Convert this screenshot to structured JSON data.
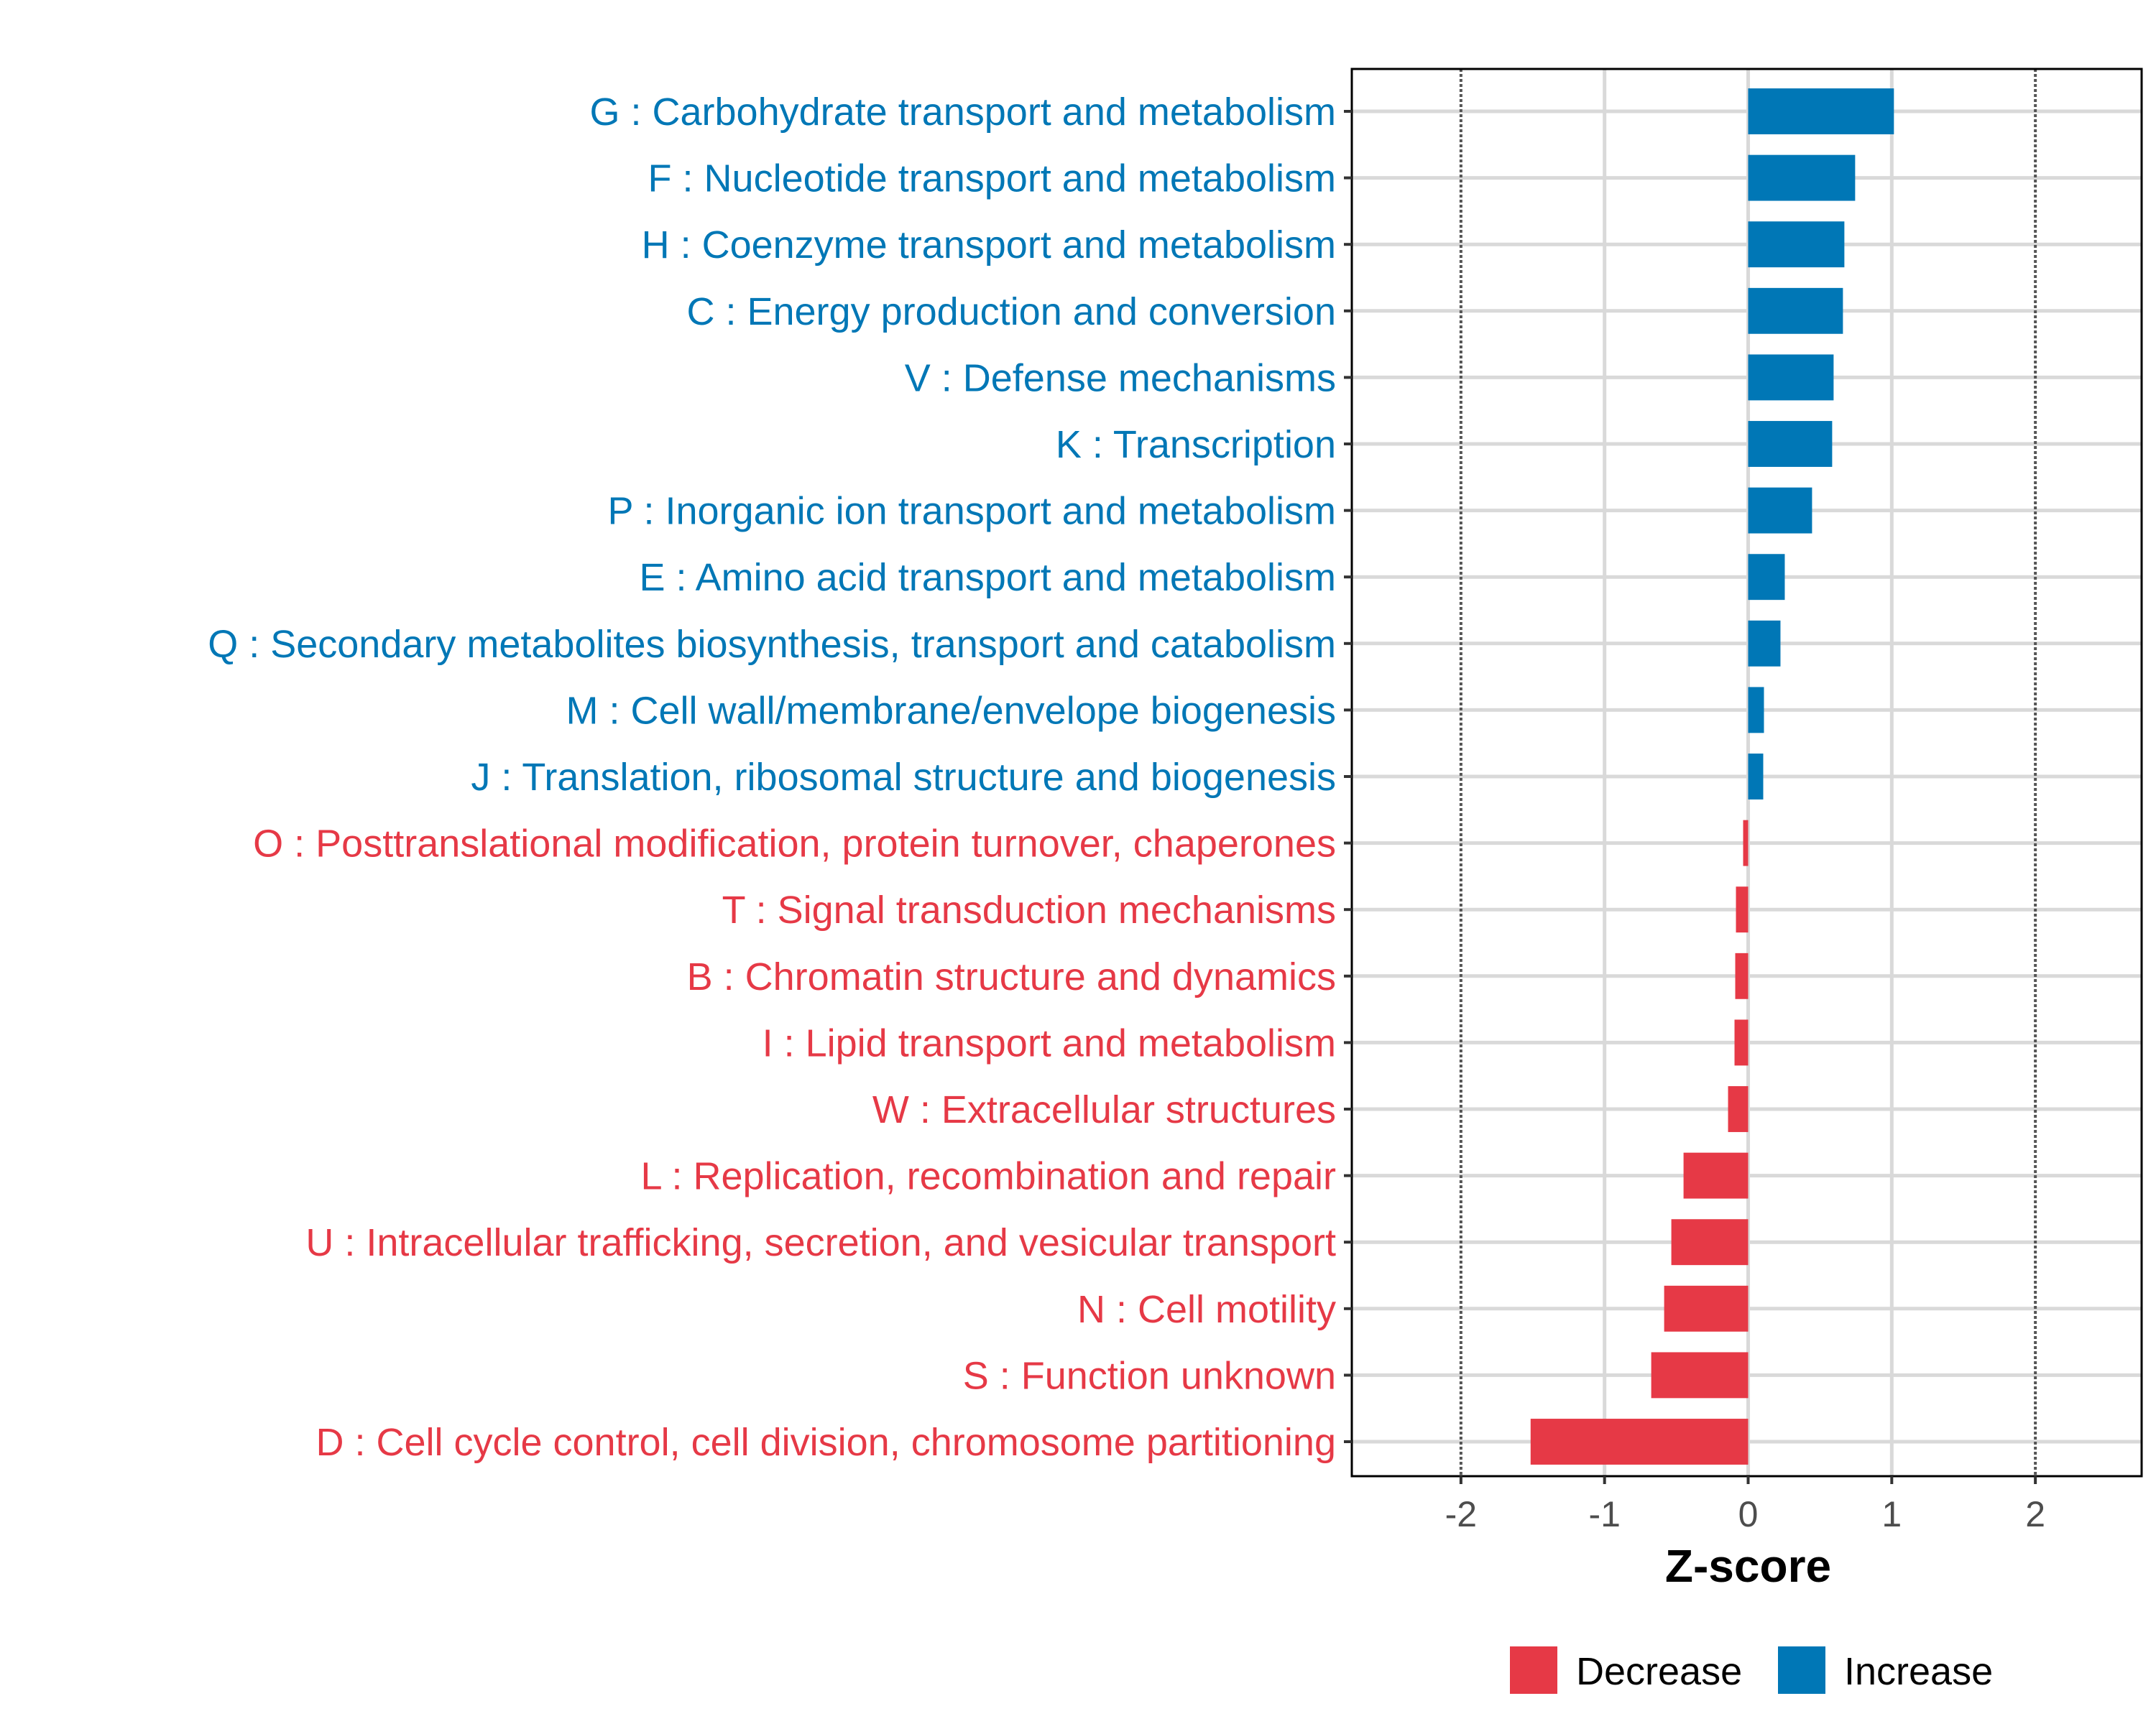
{
  "chart_data": {
    "type": "bar",
    "orientation": "horizontal",
    "title": "",
    "xlabel": "Z-score",
    "ylabel": "",
    "xlim": [
      -2.76,
      2.74
    ],
    "xticks": [
      -2,
      -1,
      0,
      1,
      2
    ],
    "xtick_labels": [
      "-2",
      "-1",
      "0",
      "1",
      "2"
    ],
    "reference_lines": [
      -2,
      2
    ],
    "grid": true,
    "legend_position": "bottom",
    "colors": {
      "Decrease": "#e63946",
      "Increase": "#0077b6"
    },
    "legend": [
      {
        "label": "Decrease",
        "color": "#e63946"
      },
      {
        "label": "Increase",
        "color": "#0077b6"
      }
    ],
    "categories": [
      "G : Carbohydrate transport and metabolism",
      "F : Nucleotide transport and metabolism",
      "H : Coenzyme transport and metabolism",
      "C : Energy production and conversion",
      "V : Defense mechanisms",
      "K : Transcription",
      "P : Inorganic ion transport and metabolism",
      "E : Amino acid transport and metabolism",
      "Q : Secondary metabolites biosynthesis, transport and catabolism",
      "M : Cell wall/membrane/envelope biogenesis",
      "J : Translation, ribosomal structure and biogenesis",
      "O : Posttranslational modification, protein turnover, chaperones",
      "T : Signal transduction mechanisms",
      "B : Chromatin structure and dynamics",
      "I : Lipid transport and metabolism",
      "W : Extracellular structures",
      "L : Replication, recombination and repair",
      "U : Intracellular trafficking, secretion, and vesicular transport",
      "N : Cell motility",
      "S : Function unknown",
      "D : Cell cycle control, cell division, chromosome partitioning"
    ],
    "values": [
      1.015,
      0.745,
      0.67,
      0.66,
      0.595,
      0.585,
      0.445,
      0.255,
      0.225,
      0.11,
      0.105,
      -0.035,
      -0.085,
      -0.09,
      -0.095,
      -0.14,
      -0.45,
      -0.535,
      -0.585,
      -0.675,
      -1.515
    ],
    "groups": [
      "Increase",
      "Increase",
      "Increase",
      "Increase",
      "Increase",
      "Increase",
      "Increase",
      "Increase",
      "Increase",
      "Increase",
      "Increase",
      "Decrease",
      "Decrease",
      "Decrease",
      "Decrease",
      "Decrease",
      "Decrease",
      "Decrease",
      "Decrease",
      "Decrease",
      "Decrease"
    ]
  }
}
